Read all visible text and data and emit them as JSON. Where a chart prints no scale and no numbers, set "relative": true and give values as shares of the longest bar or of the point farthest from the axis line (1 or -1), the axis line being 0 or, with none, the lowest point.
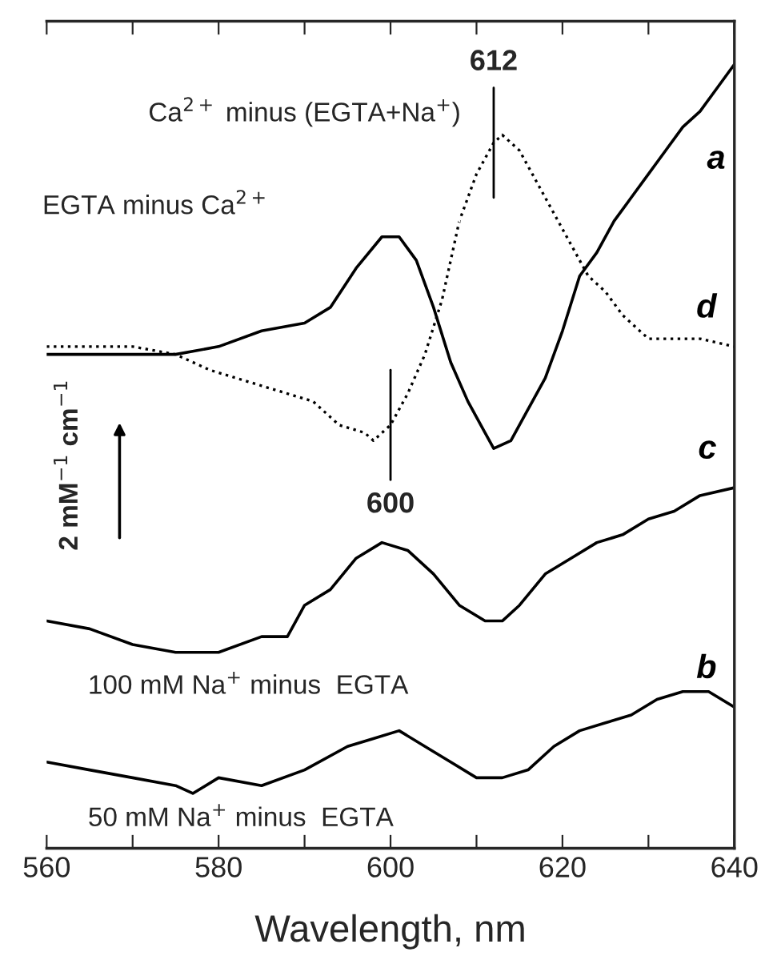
{
  "chart_data": {
    "type": "line",
    "relative": true,
    "xlabel": "Wavelength, nm",
    "xlim": [
      560,
      640
    ],
    "xticks": [
      560,
      {
        "value": 570,
        "label": null
      },
      580,
      {
        "value": 590,
        "label": null
      },
      600,
      {
        "value": 610,
        "label": null
      },
      620,
      {
        "value": 630,
        "label": null
      },
      640
    ],
    "grid": false,
    "marker": "none",
    "series": [
      {
        "name": "a",
        "color": "#000000",
        "line_style": "solid",
        "x": [
          560,
          565,
          570,
          575,
          580,
          585,
          590,
          593,
          596,
          599,
          600,
          601,
          603,
          605,
          607,
          609,
          611,
          612,
          614,
          616,
          618,
          620,
          622,
          624,
          626,
          628,
          630,
          632,
          634,
          636,
          638,
          640
        ],
        "values": [
          0.63,
          0.63,
          0.63,
          0.63,
          0.64,
          0.66,
          0.67,
          0.69,
          0.74,
          0.78,
          0.78,
          0.78,
          0.75,
          0.69,
          0.62,
          0.57,
          0.53,
          0.51,
          0.52,
          0.56,
          0.6,
          0.66,
          0.73,
          0.76,
          0.8,
          0.83,
          0.86,
          0.89,
          0.92,
          0.94,
          0.97,
          1.0
        ]
      },
      {
        "name": "d",
        "color": "#000000",
        "line_style": "dotted",
        "x": [
          560,
          565,
          570,
          575,
          579,
          582,
          585,
          588,
          591,
          594,
          597,
          598,
          600,
          602,
          604,
          606,
          608,
          610,
          612,
          613,
          615,
          617,
          619,
          621,
          623,
          625,
          627,
          630,
          633,
          636,
          640
        ],
        "values": [
          0.64,
          0.64,
          0.64,
          0.63,
          0.61,
          0.6,
          0.59,
          0.58,
          0.57,
          0.54,
          0.53,
          0.52,
          0.54,
          0.58,
          0.63,
          0.7,
          0.8,
          0.86,
          0.9,
          0.91,
          0.89,
          0.85,
          0.81,
          0.77,
          0.73,
          0.71,
          0.68,
          0.65,
          0.65,
          0.65,
          0.64
        ]
      },
      {
        "name": "c",
        "color": "#000000",
        "line_style": "solid",
        "x": [
          560,
          565,
          570,
          575,
          580,
          585,
          588,
          590,
          593,
          596,
          599,
          602,
          605,
          608,
          611,
          613,
          615,
          618,
          621,
          624,
          627,
          630,
          633,
          636,
          640
        ],
        "values": [
          0.29,
          0.28,
          0.26,
          0.25,
          0.25,
          0.27,
          0.27,
          0.31,
          0.33,
          0.37,
          0.39,
          0.38,
          0.35,
          0.31,
          0.29,
          0.29,
          0.31,
          0.35,
          0.37,
          0.39,
          0.4,
          0.42,
          0.43,
          0.45,
          0.46
        ]
      },
      {
        "name": "b",
        "color": "#000000",
        "line_style": "solid",
        "x": [
          560,
          565,
          570,
          575,
          577,
          580,
          585,
          590,
          595,
          598,
          601,
          604,
          607,
          610,
          613,
          616,
          619,
          622,
          625,
          628,
          631,
          634,
          637,
          640
        ],
        "values": [
          0.11,
          0.1,
          0.09,
          0.08,
          0.07,
          0.09,
          0.08,
          0.1,
          0.13,
          0.14,
          0.15,
          0.13,
          0.11,
          0.09,
          0.09,
          0.1,
          0.13,
          0.15,
          0.16,
          0.17,
          0.19,
          0.2,
          0.2,
          0.18
        ]
      }
    ],
    "annotations": [
      {
        "text": "612",
        "x": 612,
        "y": 0.9
      },
      {
        "text": "600",
        "x": 600,
        "y": 0.54
      },
      {
        "text": "Ca$^{2+}$ minus (EGTA+Na$^{+}$)",
        "x": 608,
        "y": 0.8
      },
      "EGTA minus Ca$^{2+}$",
      "2 mM$^{−1}$ cm$^{−1}$",
      "100 mM Na$^{+}$ minus  EGTA",
      "50 mM Na$^{+}$ minus  EGTA"
    ]
  }
}
